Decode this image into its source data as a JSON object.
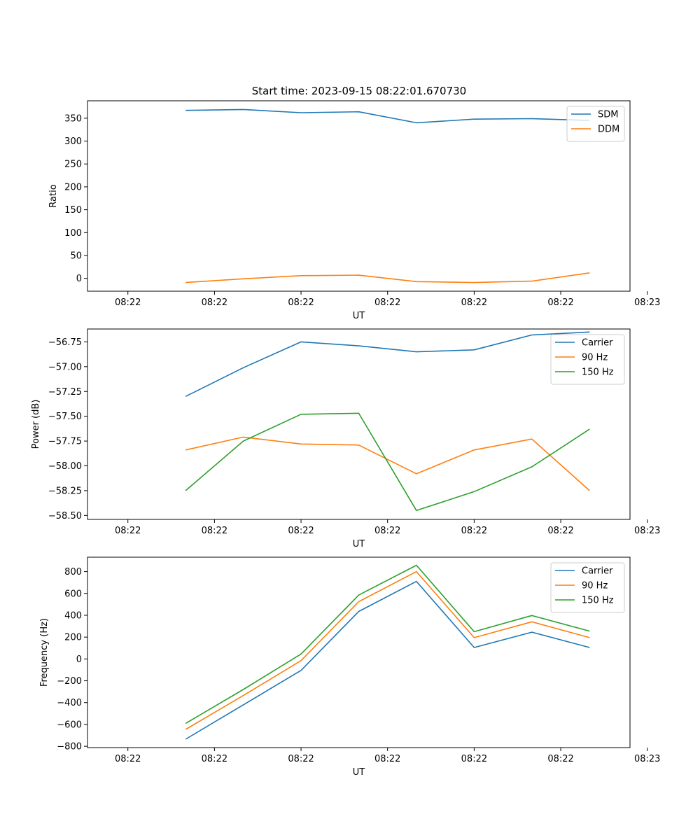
{
  "page": {
    "title": "Start time: 2023-09-15 08:22:01.670730"
  },
  "chart_data": [
    {
      "type": "line",
      "xlabel": "UT",
      "ylabel": "Ratio",
      "x_tick_labels": [
        "08:22",
        "08:22",
        "08:22",
        "08:22",
        "08:22",
        "08:22",
        "08:23"
      ],
      "x": [
        1,
        2,
        3,
        4,
        5,
        6,
        7,
        8
      ],
      "xlim": [
        -0.7,
        8.7
      ],
      "ylim": [
        -28,
        388
      ],
      "y_ticks": [
        0,
        50,
        100,
        150,
        200,
        250,
        300,
        350
      ],
      "y_tick_labels": [
        "0",
        "50",
        "100",
        "150",
        "200",
        "250",
        "300",
        "350"
      ],
      "legend_position": "top-right",
      "series": [
        {
          "name": "SDM",
          "color": "#1f77b4",
          "values": [
            367,
            369,
            362,
            364,
            340,
            348,
            349,
            345
          ]
        },
        {
          "name": "DDM",
          "color": "#ff7f0e",
          "values": [
            -9,
            -1,
            6,
            7,
            -7,
            -9,
            -6,
            12
          ]
        }
      ]
    },
    {
      "type": "line",
      "xlabel": "UT",
      "ylabel": "Power (dB)",
      "x_tick_labels": [
        "08:22",
        "08:22",
        "08:22",
        "08:22",
        "08:22",
        "08:22",
        "08:23"
      ],
      "x": [
        1,
        2,
        3,
        4,
        5,
        6,
        7,
        8
      ],
      "xlim": [
        -0.7,
        8.7
      ],
      "ylim": [
        -58.54,
        -56.62
      ],
      "y_ticks": [
        -58.5,
        -58.25,
        -58.0,
        -57.75,
        -57.5,
        -57.25,
        -57.0,
        -56.75
      ],
      "y_tick_labels": [
        "−58.50",
        "−58.25",
        "−58.00",
        "−57.75",
        "−57.50",
        "−57.25",
        "−57.00",
        "−56.75"
      ],
      "legend_position": "top-right",
      "series": [
        {
          "name": "Carrier",
          "color": "#1f77b4",
          "values": [
            -57.3,
            -57.01,
            -56.75,
            -56.79,
            -56.85,
            -56.83,
            -56.68,
            -56.65
          ]
        },
        {
          "name": "90 Hz",
          "color": "#ff7f0e",
          "values": [
            -57.84,
            -57.71,
            -57.78,
            -57.79,
            -58.08,
            -57.84,
            -57.73,
            -58.25
          ]
        },
        {
          "name": "150 Hz",
          "color": "#2ca02c",
          "values": [
            -58.25,
            -57.75,
            -57.48,
            -57.47,
            -58.45,
            -58.26,
            -58.01,
            -57.63
          ]
        }
      ]
    },
    {
      "type": "line",
      "xlabel": "UT",
      "ylabel": "Frequency (Hz)",
      "x_tick_labels": [
        "08:22",
        "08:22",
        "08:22",
        "08:22",
        "08:22",
        "08:22",
        "08:23"
      ],
      "x": [
        1,
        2,
        3,
        4,
        5,
        6,
        7,
        8
      ],
      "xlim": [
        -0.7,
        8.7
      ],
      "ylim": [
        -812,
        932
      ],
      "y_ticks": [
        -800,
        -600,
        -400,
        -200,
        0,
        200,
        400,
        600,
        800
      ],
      "y_tick_labels": [
        "−800",
        "−600",
        "−400",
        "−200",
        "0",
        "200",
        "400",
        "600",
        "800"
      ],
      "legend_position": "top-right",
      "series": [
        {
          "name": "Carrier",
          "color": "#1f77b4",
          "values": [
            -735,
            -420,
            -105,
            435,
            710,
            105,
            245,
            105
          ]
        },
        {
          "name": "90 Hz",
          "color": "#ff7f0e",
          "values": [
            -645,
            -335,
            -15,
            525,
            800,
            195,
            340,
            195
          ]
        },
        {
          "name": "150 Hz",
          "color": "#2ca02c",
          "values": [
            -590,
            -280,
            45,
            585,
            858,
            250,
            398,
            255
          ]
        }
      ]
    }
  ]
}
